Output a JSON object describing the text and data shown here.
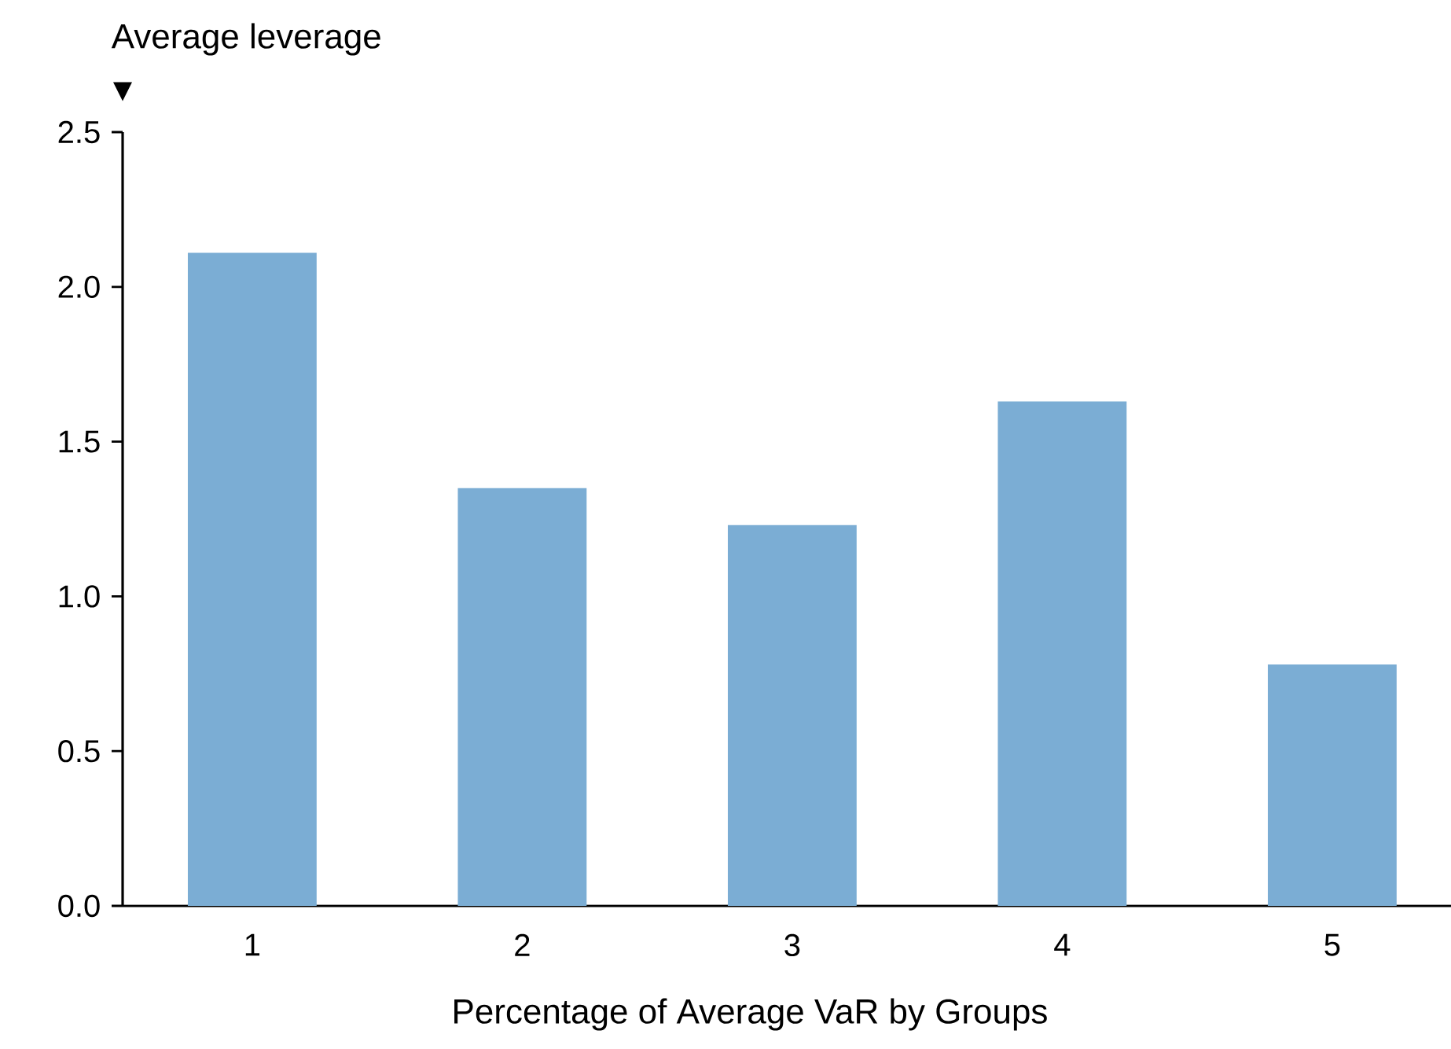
{
  "chart_data": {
    "type": "bar",
    "xlabel": "Percentage of Average VaR by Groups",
    "ylabel": "Average leverage",
    "categories": [
      "1",
      "2",
      "3",
      "4",
      "5"
    ],
    "values": [
      2.11,
      1.35,
      1.23,
      1.63,
      0.78
    ],
    "color": "#7badd4",
    "ylim": [
      0,
      2.5
    ],
    "yticks": [
      {
        "value": 0,
        "label": "0.0"
      },
      {
        "value": 0.5,
        "label": "0.5"
      },
      {
        "value": 1,
        "label": "1.0"
      },
      {
        "value": 1.5,
        "label": "1.5"
      },
      {
        "value": 2,
        "label": "2.0"
      },
      {
        "value": 2.5,
        "label": "2.5"
      }
    ],
    "grid": false
  }
}
